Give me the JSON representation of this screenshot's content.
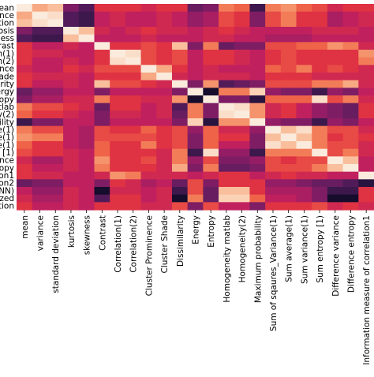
{
  "chart_data": {
    "type": "heatmap",
    "title": "",
    "xlabel": "",
    "ylabel": "",
    "x_tick_labels": [
      "mean",
      "variance",
      "standard deviation",
      "kurtosis",
      "skewness",
      "Contrast",
      "Correlation(1)",
      "Correlation(2)",
      "Cluster Prominence",
      "Cluster Shade",
      "Dissimilarity",
      "Energy",
      "Entropy",
      "Homogeneity matlab",
      "Homogeneity(2)",
      "Maximum probability",
      "Sum of sqaures_Variance(1)",
      "Sum average(1)",
      "Sum variance(1)",
      "Sum entropy [1)",
      "Difference variance",
      "Difference entropy",
      "Information measure of correlation1"
    ],
    "y_tick_labels": [
      "ean",
      "ance",
      "ation",
      "osis",
      "ness",
      "rast",
      "n(1)",
      "n(2)",
      "ence",
      "ade",
      "arity",
      "ergy",
      "ntropy",
      "matlab",
      "y(2)",
      "bility",
      "e(1)",
      "e(1)",
      "e(1)",
      "y [1)",
      "ance",
      "entropy",
      "on1",
      "on2",
      "(NN)",
      "ized",
      "ction"
    ],
    "colormap": [
      "#03051a",
      "#2d1543",
      "#5a1d5e",
      "#8d1d66",
      "#be1f5f",
      "#e13342",
      "#f26c4a",
      "#f6a077",
      "#fbcfb1",
      "#faebdd"
    ],
    "values": [
      [
        1.0,
        0.8,
        0.85,
        0.3,
        0.2,
        0.55,
        0.55,
        0.55,
        0.5,
        0.55,
        0.55,
        0.25,
        0.3,
        0.7,
        0.65,
        0.15,
        0.7,
        0.75,
        0.65,
        0.6,
        0.5,
        0.55,
        0.55
      ],
      [
        0.8,
        1.0,
        0.95,
        0.2,
        0.15,
        0.45,
        0.5,
        0.45,
        0.45,
        0.5,
        0.45,
        0.35,
        0.4,
        0.6,
        0.55,
        0.3,
        0.6,
        0.7,
        0.55,
        0.55,
        0.4,
        0.45,
        0.5
      ],
      [
        0.85,
        0.95,
        1.0,
        0.2,
        0.15,
        0.45,
        0.5,
        0.45,
        0.45,
        0.5,
        0.45,
        0.35,
        0.4,
        0.6,
        0.55,
        0.3,
        0.6,
        0.7,
        0.55,
        0.55,
        0.4,
        0.45,
        0.5
      ],
      [
        0.3,
        0.2,
        0.2,
        1.0,
        0.85,
        0.5,
        0.45,
        0.5,
        0.55,
        0.5,
        0.5,
        0.45,
        0.5,
        0.55,
        0.5,
        0.45,
        0.45,
        0.45,
        0.45,
        0.5,
        0.5,
        0.5,
        0.45
      ],
      [
        0.2,
        0.15,
        0.15,
        0.85,
        1.0,
        0.45,
        0.45,
        0.45,
        0.5,
        0.45,
        0.45,
        0.45,
        0.5,
        0.5,
        0.45,
        0.45,
        0.4,
        0.4,
        0.4,
        0.45,
        0.45,
        0.45,
        0.45
      ],
      [
        0.55,
        0.45,
        0.45,
        0.5,
        0.45,
        1.0,
        0.55,
        0.55,
        0.6,
        0.55,
        0.85,
        0.3,
        0.7,
        0.25,
        0.3,
        0.3,
        0.6,
        0.6,
        0.65,
        0.65,
        0.75,
        0.7,
        0.5
      ],
      [
        0.55,
        0.5,
        0.5,
        0.45,
        0.45,
        0.55,
        1.0,
        0.95,
        0.6,
        0.55,
        0.6,
        0.45,
        0.55,
        0.55,
        0.5,
        0.45,
        0.55,
        0.6,
        0.55,
        0.55,
        0.55,
        0.55,
        0.75
      ],
      [
        0.55,
        0.45,
        0.45,
        0.5,
        0.45,
        0.55,
        0.95,
        1.0,
        0.6,
        0.55,
        0.6,
        0.45,
        0.55,
        0.55,
        0.5,
        0.45,
        0.55,
        0.6,
        0.55,
        0.55,
        0.55,
        0.55,
        0.7
      ],
      [
        0.5,
        0.45,
        0.45,
        0.55,
        0.5,
        0.6,
        0.6,
        0.6,
        1.0,
        0.8,
        0.55,
        0.45,
        0.5,
        0.45,
        0.45,
        0.45,
        0.65,
        0.6,
        0.7,
        0.55,
        0.6,
        0.55,
        0.5
      ],
      [
        0.55,
        0.5,
        0.5,
        0.5,
        0.45,
        0.55,
        0.55,
        0.55,
        0.8,
        1.0,
        0.5,
        0.45,
        0.5,
        0.5,
        0.5,
        0.45,
        0.55,
        0.55,
        0.55,
        0.5,
        0.5,
        0.5,
        0.5
      ],
      [
        0.55,
        0.45,
        0.45,
        0.5,
        0.45,
        0.85,
        0.6,
        0.6,
        0.55,
        0.5,
        1.0,
        0.3,
        0.75,
        0.2,
        0.25,
        0.3,
        0.6,
        0.6,
        0.6,
        0.7,
        0.7,
        0.8,
        0.5
      ],
      [
        0.25,
        0.35,
        0.35,
        0.45,
        0.45,
        0.3,
        0.45,
        0.45,
        0.45,
        0.45,
        0.3,
        1.0,
        0.05,
        0.7,
        0.7,
        0.9,
        0.35,
        0.3,
        0.3,
        0.15,
        0.35,
        0.3,
        0.45
      ],
      [
        0.3,
        0.4,
        0.4,
        0.5,
        0.5,
        0.7,
        0.55,
        0.55,
        0.5,
        0.5,
        0.75,
        0.05,
        1.0,
        0.3,
        0.3,
        0.1,
        0.65,
        0.65,
        0.65,
        0.95,
        0.6,
        0.7,
        0.5
      ],
      [
        0.7,
        0.6,
        0.6,
        0.55,
        0.5,
        0.25,
        0.55,
        0.55,
        0.45,
        0.5,
        0.2,
        0.7,
        0.3,
        1.0,
        0.95,
        0.75,
        0.5,
        0.55,
        0.45,
        0.35,
        0.3,
        0.25,
        0.55
      ],
      [
        0.65,
        0.55,
        0.55,
        0.5,
        0.45,
        0.3,
        0.5,
        0.5,
        0.45,
        0.5,
        0.25,
        0.7,
        0.3,
        0.95,
        1.0,
        0.75,
        0.5,
        0.55,
        0.45,
        0.35,
        0.3,
        0.25,
        0.55
      ],
      [
        0.15,
        0.3,
        0.3,
        0.45,
        0.45,
        0.3,
        0.45,
        0.45,
        0.45,
        0.45,
        0.3,
        0.9,
        0.1,
        0.75,
        0.75,
        1.0,
        0.35,
        0.3,
        0.3,
        0.15,
        0.35,
        0.3,
        0.45
      ],
      [
        0.7,
        0.6,
        0.6,
        0.45,
        0.4,
        0.6,
        0.55,
        0.55,
        0.65,
        0.55,
        0.6,
        0.35,
        0.65,
        0.5,
        0.5,
        0.35,
        1.0,
        0.85,
        0.95,
        0.7,
        0.6,
        0.6,
        0.5
      ],
      [
        0.75,
        0.7,
        0.7,
        0.45,
        0.4,
        0.6,
        0.6,
        0.6,
        0.6,
        0.55,
        0.6,
        0.3,
        0.65,
        0.55,
        0.55,
        0.3,
        0.85,
        1.0,
        0.85,
        0.7,
        0.55,
        0.6,
        0.55
      ],
      [
        0.65,
        0.55,
        0.55,
        0.45,
        0.4,
        0.65,
        0.55,
        0.55,
        0.7,
        0.55,
        0.6,
        0.3,
        0.65,
        0.45,
        0.45,
        0.3,
        0.95,
        0.85,
        1.0,
        0.7,
        0.6,
        0.6,
        0.5
      ],
      [
        0.6,
        0.55,
        0.55,
        0.5,
        0.45,
        0.65,
        0.55,
        0.55,
        0.55,
        0.5,
        0.7,
        0.15,
        0.95,
        0.35,
        0.35,
        0.15,
        0.7,
        0.7,
        0.7,
        1.0,
        0.6,
        0.7,
        0.5
      ],
      [
        0.5,
        0.4,
        0.4,
        0.5,
        0.45,
        0.75,
        0.55,
        0.55,
        0.6,
        0.5,
        0.7,
        0.35,
        0.6,
        0.3,
        0.3,
        0.35,
        0.6,
        0.55,
        0.6,
        0.6,
        1.0,
        0.85,
        0.45
      ],
      [
        0.55,
        0.45,
        0.45,
        0.5,
        0.45,
        0.7,
        0.55,
        0.55,
        0.55,
        0.5,
        0.8,
        0.3,
        0.7,
        0.25,
        0.25,
        0.3,
        0.6,
        0.6,
        0.6,
        0.7,
        0.85,
        1.0,
        0.45
      ],
      [
        0.55,
        0.5,
        0.5,
        0.45,
        0.45,
        0.5,
        0.75,
        0.7,
        0.5,
        0.5,
        0.5,
        0.45,
        0.5,
        0.55,
        0.55,
        0.45,
        0.5,
        0.55,
        0.5,
        0.5,
        0.45,
        0.45,
        1.0
      ],
      [
        0.25,
        0.3,
        0.3,
        0.45,
        0.45,
        0.3,
        0.55,
        0.5,
        0.4,
        0.45,
        0.25,
        0.6,
        0.3,
        0.55,
        0.55,
        0.55,
        0.35,
        0.35,
        0.3,
        0.25,
        0.25,
        0.2,
        0.1
      ],
      [
        0.45,
        0.35,
        0.35,
        0.5,
        0.45,
        0.05,
        0.5,
        0.5,
        0.45,
        0.5,
        0.15,
        0.6,
        0.25,
        0.85,
        0.85,
        0.55,
        0.4,
        0.4,
        0.4,
        0.3,
        0.15,
        0.15,
        0.55
      ],
      [
        0.5,
        0.4,
        0.4,
        0.5,
        0.45,
        0.2,
        0.55,
        0.55,
        0.45,
        0.5,
        0.05,
        0.7,
        0.25,
        0.9,
        0.9,
        0.65,
        0.45,
        0.45,
        0.4,
        0.3,
        0.05,
        0.05,
        0.55
      ],
      [
        0.55,
        0.45,
        0.45,
        0.5,
        0.45,
        0.55,
        0.55,
        0.55,
        0.5,
        0.5,
        0.6,
        0.3,
        0.6,
        0.45,
        0.45,
        0.3,
        0.55,
        0.55,
        0.55,
        0.6,
        0.5,
        0.55,
        0.5
      ]
    ]
  }
}
